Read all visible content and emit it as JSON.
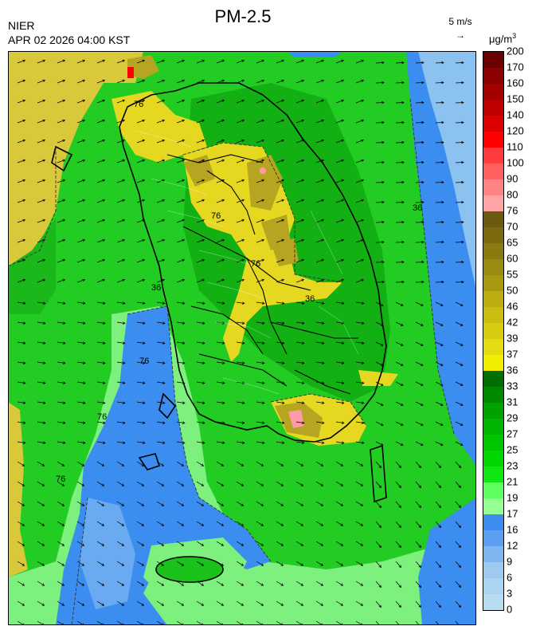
{
  "header": {
    "title": "PM-2.5",
    "agency": "NIER",
    "datetime": "APR 02 2026 04:00 KST",
    "wind_reference": "5 m/s",
    "wind_reference_icon": "right-arrow-icon",
    "unit": "μg/m",
    "unit_superscript": "3"
  },
  "legend": {
    "levels": [
      {
        "label": "200",
        "color": "#6b0000"
      },
      {
        "label": "170",
        "color": "#8b0000"
      },
      {
        "label": "160",
        "color": "#a50000"
      },
      {
        "label": "150",
        "color": "#c00000"
      },
      {
        "label": "140",
        "color": "#dd0000"
      },
      {
        "label": "120",
        "color": "#ff0000"
      },
      {
        "label": "110",
        "color": "#ff3b3b"
      },
      {
        "label": "100",
        "color": "#ff6161"
      },
      {
        "label": "90",
        "color": "#ff8383"
      },
      {
        "label": "80",
        "color": "#ffa4a4"
      },
      {
        "label": "76",
        "color": "#6b5a10"
      },
      {
        "label": "70",
        "color": "#7d6a10"
      },
      {
        "label": "65",
        "color": "#8a7a10"
      },
      {
        "label": "60",
        "color": "#998a10"
      },
      {
        "label": "55",
        "color": "#a89a10"
      },
      {
        "label": "50",
        "color": "#bcac10"
      },
      {
        "label": "46",
        "color": "#cabc10"
      },
      {
        "label": "42",
        "color": "#d7cc10"
      },
      {
        "label": "39",
        "color": "#e3dc10"
      },
      {
        "label": "37",
        "color": "#f3ee00"
      },
      {
        "label": "36",
        "color": "#006e00"
      },
      {
        "label": "33",
        "color": "#008a00"
      },
      {
        "label": "31",
        "color": "#00a200"
      },
      {
        "label": "29",
        "color": "#00b600"
      },
      {
        "label": "27",
        "color": "#00c600"
      },
      {
        "label": "25",
        "color": "#00d600"
      },
      {
        "label": "23",
        "color": "#10e610"
      },
      {
        "label": "21",
        "color": "#5eff5e"
      },
      {
        "label": "19",
        "color": "#94ff94"
      },
      {
        "label": "17",
        "color": "#3d8cf0"
      },
      {
        "label": "16",
        "color": "#5c9ef0"
      },
      {
        "label": "12",
        "color": "#80b6f0"
      },
      {
        "label": "9",
        "color": "#9ecaf0"
      },
      {
        "label": "6",
        "color": "#aad4f0"
      },
      {
        "label": "3",
        "color": "#b8dcf0"
      }
    ],
    "bottom_label": "0"
  },
  "map": {
    "contour_labels": [
      "76",
      "76",
      "76",
      "76",
      "36",
      "36",
      "36",
      "76",
      "76"
    ],
    "colors": {
      "background_green": "#22cc22",
      "dark_green": "#00a000",
      "light_green": "#7ef07e",
      "blue": "#3b8ef0",
      "light_blue": "#8cc2f0",
      "yellow": "#e3d91c",
      "olive": "#b5a520",
      "pink": "#ff9aa8",
      "red": "#ff0000",
      "coastline": "#000000",
      "border": "#ffffff"
    }
  }
}
